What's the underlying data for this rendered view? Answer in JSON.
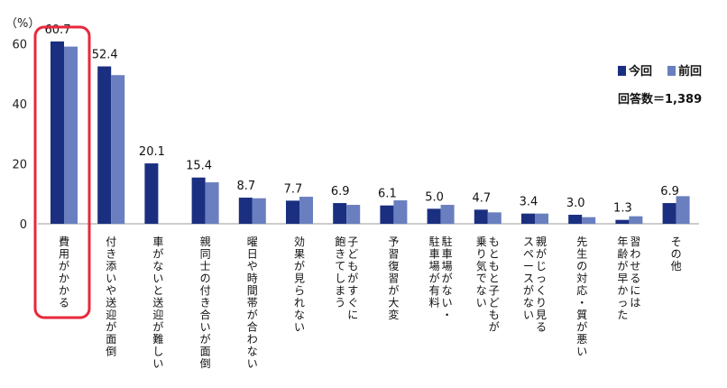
{
  "chart_data": {
    "type": "bar",
    "y_unit": "（%）",
    "ylim": [
      0,
      70
    ],
    "yticks": [
      0,
      20,
      40,
      60
    ],
    "categories": [
      "費用がかかる",
      "付き添いや送迎が面倒",
      "車がないと送迎が難しい",
      "親同士の付き合いが面倒",
      "曜日や時間帯が合わない",
      "効果が見られない",
      "子どもがすぐに|飽きてしまう",
      "予習復習が大変",
      "駐車場がない・|駐車場が有料",
      "もともと子どもが|乗り気でない",
      "親がじっくり見る|スペースがない",
      "先生の対応・質が悪い",
      "習わせるには|年齢が早かった",
      "その他"
    ],
    "series": [
      {
        "name": "今回",
        "color": "#1a2f80",
        "values": [
          60.7,
          52.4,
          20.1,
          15.4,
          8.7,
          7.7,
          6.9,
          6.1,
          5.0,
          4.7,
          3.4,
          3.0,
          1.3,
          6.9
        ]
      },
      {
        "name": "前回",
        "color": "#6a7fbf",
        "values": [
          59.0,
          49.5,
          null,
          13.8,
          8.5,
          9.0,
          6.3,
          7.8,
          6.3,
          3.8,
          3.4,
          2.2,
          2.5,
          9.2
        ]
      }
    ],
    "data_labels": [
      "60.7",
      "52.4",
      "20.1",
      "15.4",
      "8.7",
      "7.7",
      "6.9",
      "6.1",
      "5.0",
      "4.7",
      "3.4",
      "3.0",
      "1.3",
      "6.9"
    ],
    "legend_position": "right",
    "note": "回答数＝1,389",
    "highlight_category": "費用がかかる",
    "highlight_color": "#e8283b"
  }
}
